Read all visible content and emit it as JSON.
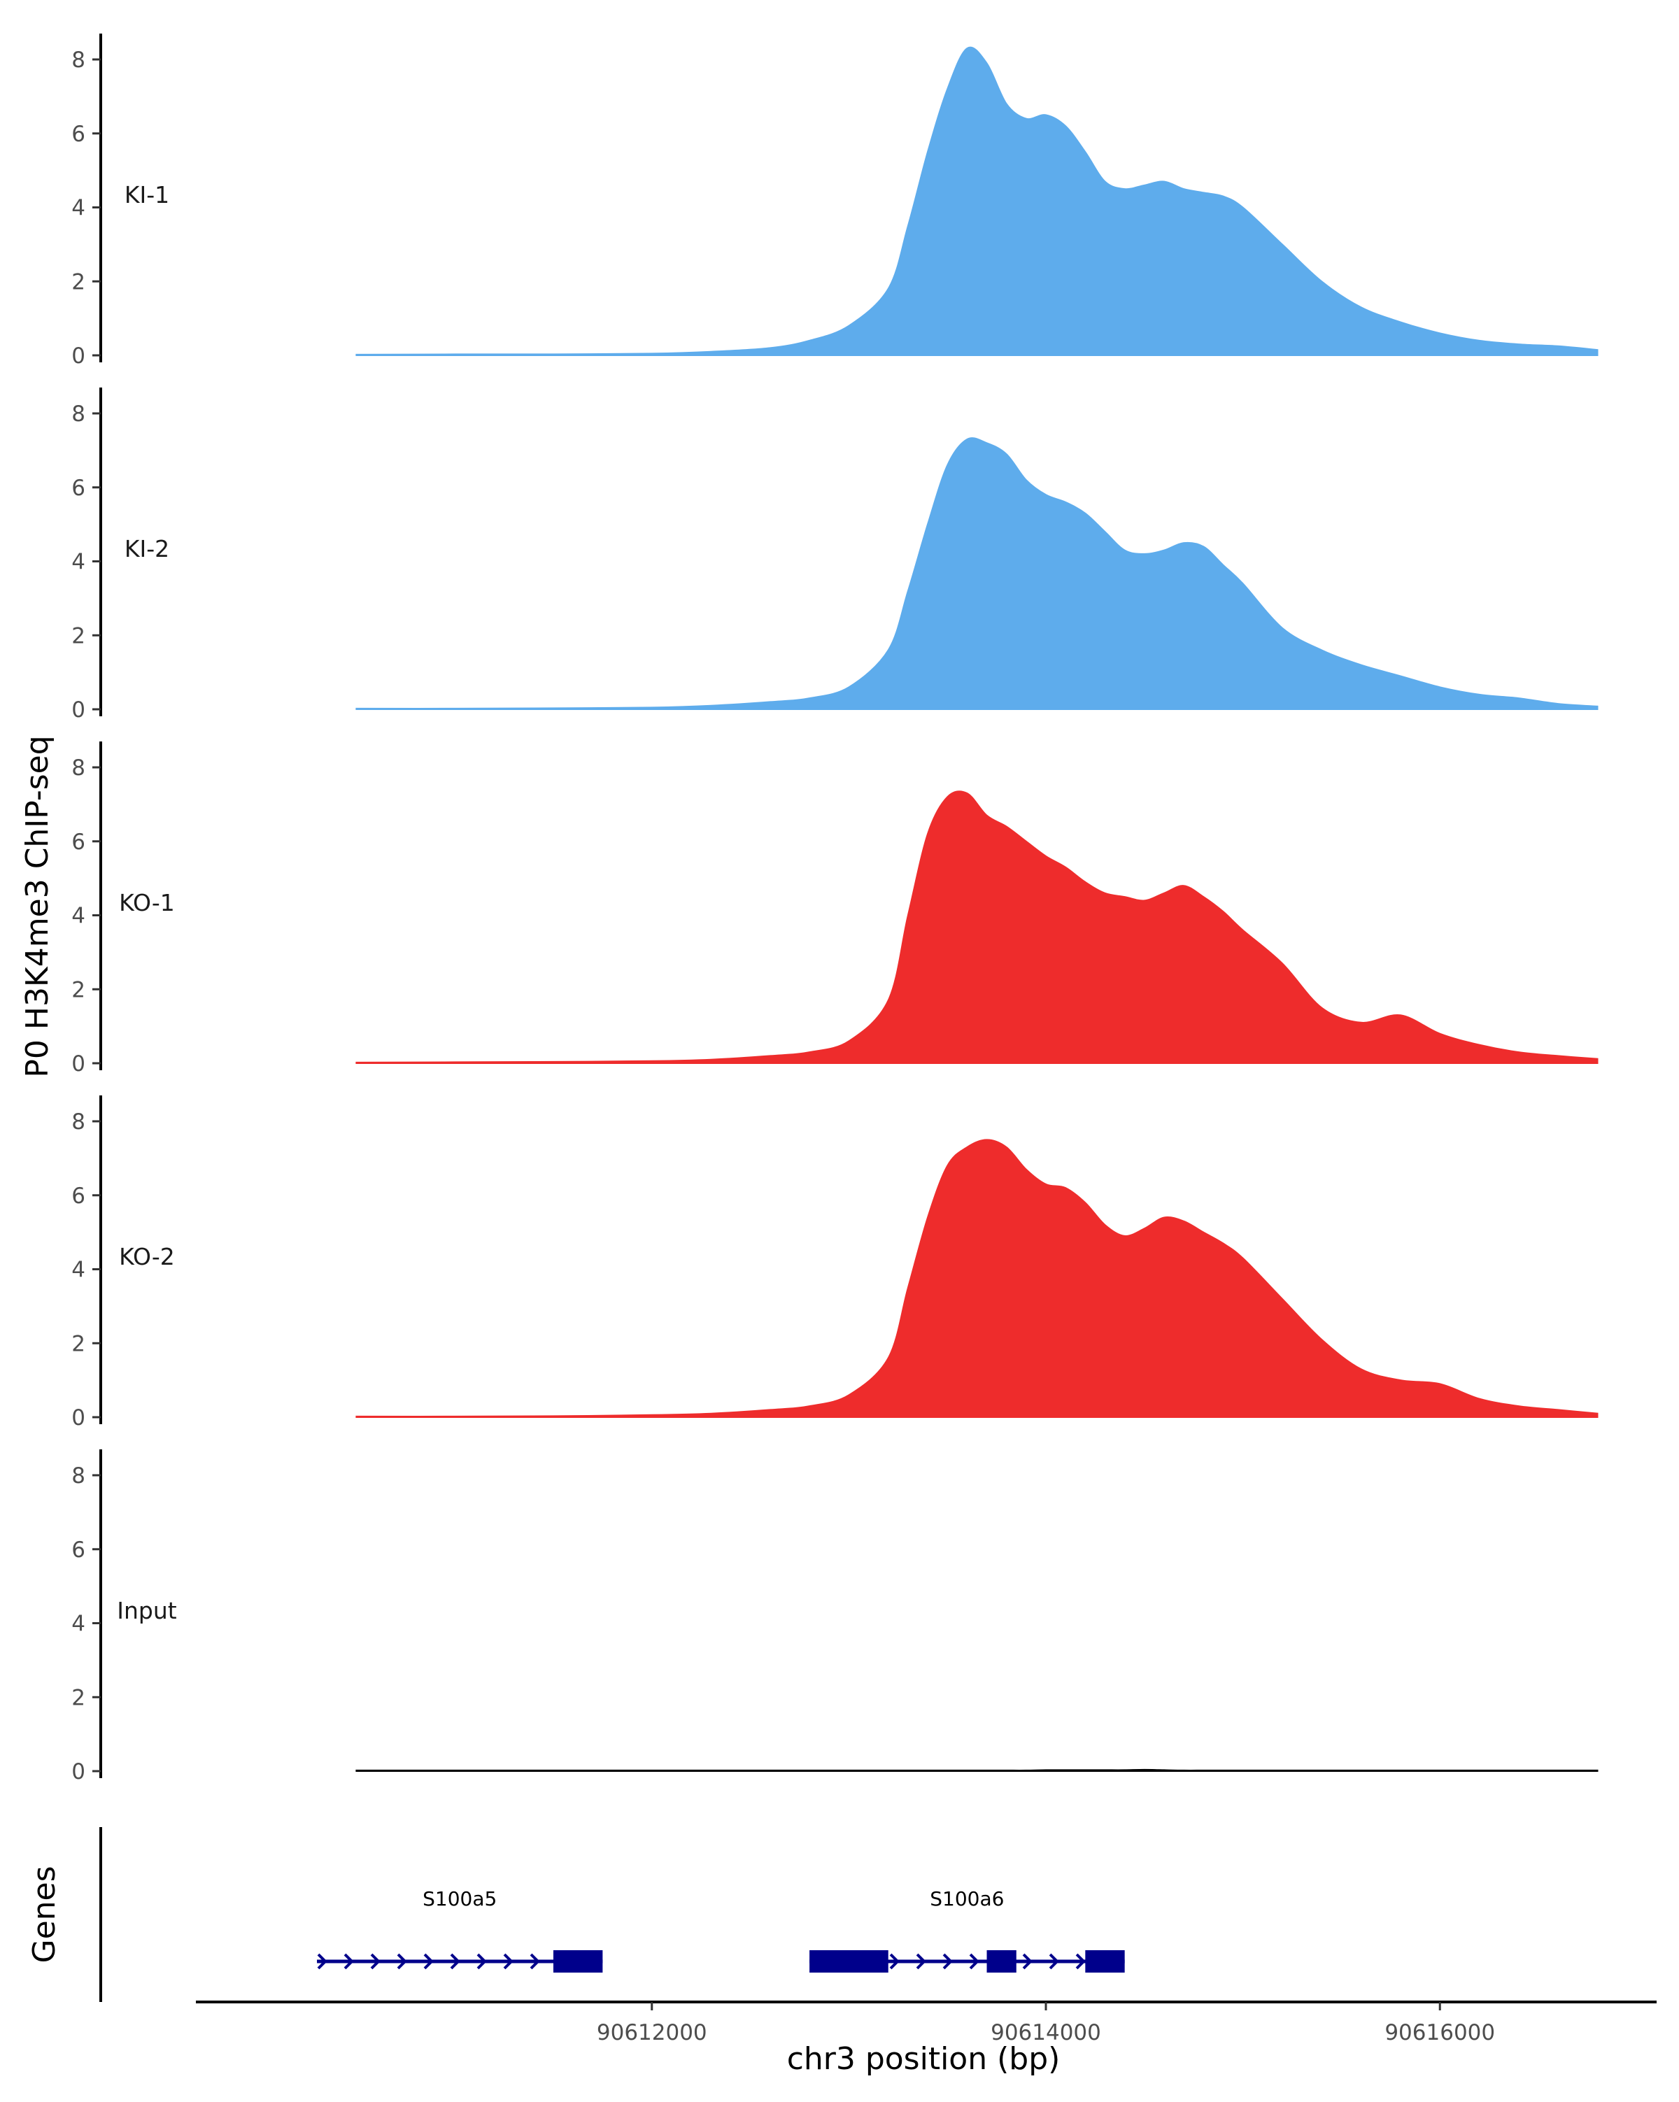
{
  "chart_data": {
    "type": "area",
    "title": "",
    "ylabel": "P0 H3K4me3 ChIP-seq",
    "xlabel": "chr3 position (bp)",
    "chromosome": "chr3",
    "xlim": [
      90609650,
      90617100
    ],
    "ylim": [
      0,
      8.7
    ],
    "y_ticks": [
      0,
      2,
      4,
      6,
      8
    ],
    "x_ticks": [
      90612000,
      90614000,
      90616000
    ],
    "x_tick_labels": [
      "90612000",
      "90614000",
      "90616000"
    ],
    "x": [
      90610500,
      90611000,
      90611500,
      90612000,
      90612300,
      90612600,
      90612800,
      90613000,
      90613200,
      90613300,
      90613400,
      90613500,
      90613600,
      90613700,
      90613800,
      90613900,
      90614000,
      90614100,
      90614200,
      90614300,
      90614400,
      90614500,
      90614600,
      90614700,
      90614800,
      90614900,
      90615000,
      90615200,
      90615400,
      90615600,
      90615800,
      90616000,
      90616200,
      90616400,
      90616600,
      90616800
    ],
    "series": [
      {
        "name": "KI-1",
        "color": "#5EACEC",
        "values": [
          0.02,
          0.03,
          0.03,
          0.05,
          0.1,
          0.2,
          0.4,
          0.8,
          1.8,
          3.5,
          5.5,
          7.2,
          8.3,
          7.9,
          6.8,
          6.4,
          6.5,
          6.2,
          5.5,
          4.7,
          4.5,
          4.6,
          4.7,
          4.5,
          4.4,
          4.3,
          4.0,
          3.0,
          2.0,
          1.3,
          0.9,
          0.6,
          0.4,
          0.3,
          0.25,
          0.15
        ]
      },
      {
        "name": "KI-2",
        "color": "#5EACEC",
        "values": [
          0.02,
          0.02,
          0.03,
          0.05,
          0.1,
          0.2,
          0.3,
          0.6,
          1.6,
          3.2,
          5.0,
          6.6,
          7.3,
          7.2,
          6.9,
          6.2,
          5.8,
          5.6,
          5.3,
          4.8,
          4.3,
          4.2,
          4.3,
          4.5,
          4.4,
          3.9,
          3.4,
          2.2,
          1.6,
          1.2,
          0.9,
          0.6,
          0.4,
          0.3,
          0.15,
          0.08
        ]
      },
      {
        "name": "KO-1",
        "color": "#EE2C2C",
        "values": [
          0.02,
          0.03,
          0.04,
          0.06,
          0.1,
          0.2,
          0.3,
          0.6,
          1.7,
          4.0,
          6.2,
          7.2,
          7.3,
          6.7,
          6.4,
          6.0,
          5.6,
          5.3,
          4.9,
          4.6,
          4.5,
          4.4,
          4.6,
          4.8,
          4.5,
          4.1,
          3.6,
          2.7,
          1.5,
          1.1,
          1.3,
          0.8,
          0.5,
          0.3,
          0.2,
          0.12
        ]
      },
      {
        "name": "KO-2",
        "color": "#EE2C2C",
        "values": [
          0.02,
          0.02,
          0.03,
          0.06,
          0.1,
          0.2,
          0.3,
          0.6,
          1.6,
          3.5,
          5.4,
          6.8,
          7.3,
          7.5,
          7.3,
          6.7,
          6.3,
          6.2,
          5.8,
          5.2,
          4.9,
          5.1,
          5.4,
          5.3,
          5.0,
          4.7,
          4.3,
          3.2,
          2.1,
          1.3,
          1.0,
          0.9,
          0.5,
          0.3,
          0.2,
          0.1
        ]
      },
      {
        "name": "Input",
        "color": "#000000",
        "values": [
          0.02,
          0.02,
          0.02,
          0.02,
          0.02,
          0.02,
          0.02,
          0.02,
          0.02,
          0.02,
          0.02,
          0.02,
          0.02,
          0.02,
          0.02,
          0.02,
          0.03,
          0.03,
          0.03,
          0.03,
          0.03,
          0.04,
          0.03,
          0.02,
          0.02,
          0.02,
          0.02,
          0.02,
          0.02,
          0.02,
          0.02,
          0.02,
          0.02,
          0.02,
          0.02,
          0.02
        ]
      }
    ],
    "genes_track": {
      "title": "Genes",
      "color": "#00008B",
      "genes": [
        {
          "name": "S100a5",
          "start": 90610300,
          "end": 90611750,
          "strand": "+",
          "exons": [
            [
              90611500,
              90611750
            ]
          ]
        },
        {
          "name": "S100a6",
          "start": 90612800,
          "end": 90614400,
          "strand": "+",
          "exons": [
            [
              90612800,
              90613200
            ],
            [
              90613700,
              90613850
            ],
            [
              90614200,
              90614400
            ]
          ]
        }
      ]
    }
  }
}
